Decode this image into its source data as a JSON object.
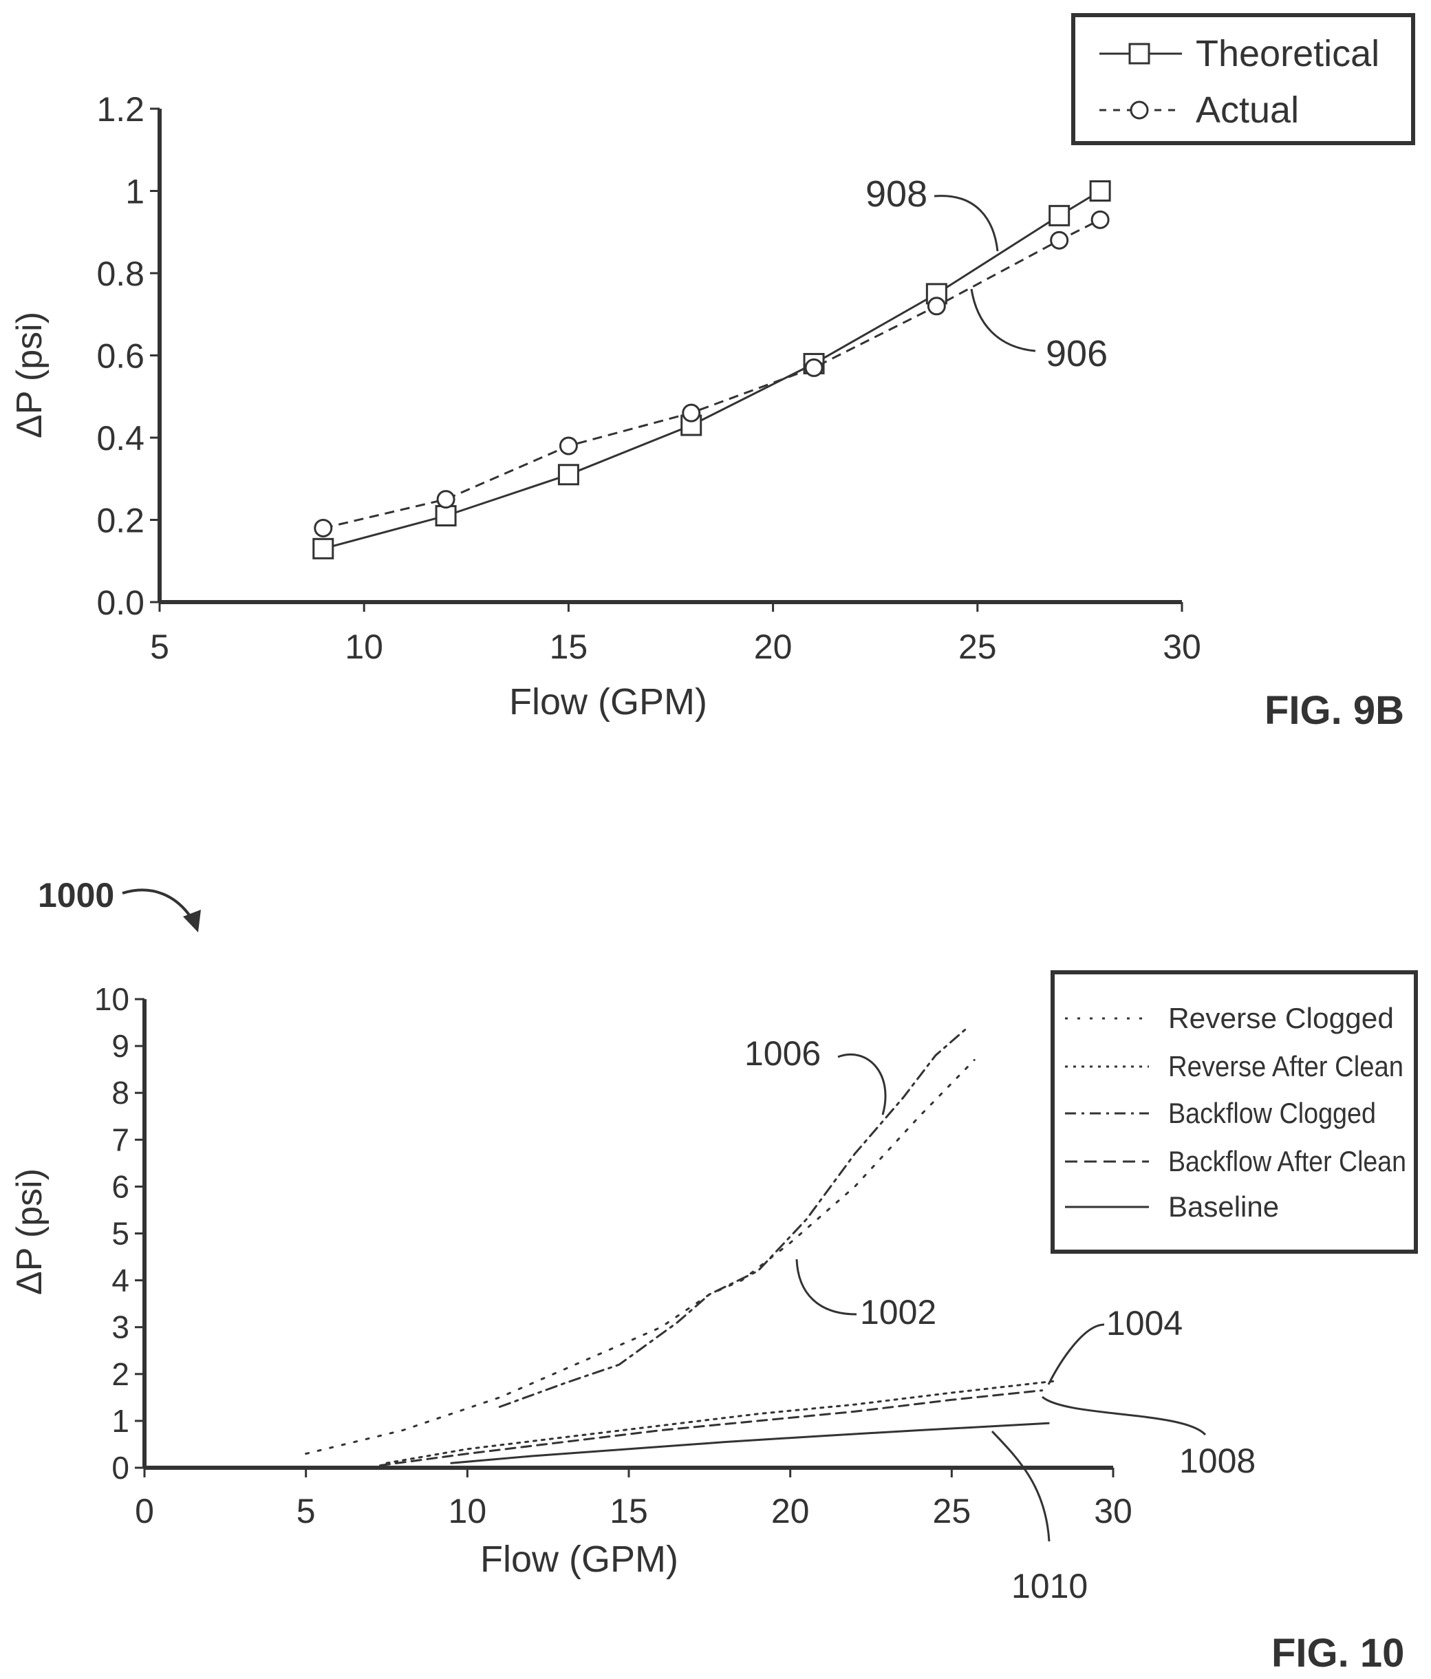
{
  "chart_data": [
    {
      "type": "line",
      "figure_label": "FIG. 9B",
      "xlabel": "Flow (GPM)",
      "ylabel": "ΔP (psi)",
      "xlim": [
        5,
        30
      ],
      "ylim": [
        0,
        1.2
      ],
      "x_ticks": [
        5,
        10,
        15,
        20,
        25,
        30
      ],
      "y_ticks": [
        "0.0",
        "0.2",
        "0.4",
        "0.6",
        "0.8",
        "1",
        "1.2"
      ],
      "legend_position": "top-right",
      "series": [
        {
          "name": "Theoretical",
          "marker": "square",
          "style": "solid",
          "callout": "908",
          "x": [
            9,
            12,
            15,
            18,
            21,
            24,
            27,
            28
          ],
          "y": [
            0.13,
            0.21,
            0.31,
            0.43,
            0.58,
            0.75,
            0.94,
            1.0
          ]
        },
        {
          "name": "Actual",
          "marker": "circle",
          "style": "dashed",
          "callout": "906",
          "x": [
            9,
            12,
            15,
            18,
            21,
            24,
            27,
            28
          ],
          "y": [
            0.18,
            0.25,
            0.38,
            0.46,
            0.57,
            0.72,
            0.88,
            0.93
          ]
        }
      ]
    },
    {
      "type": "line",
      "figure_label": "FIG. 10",
      "reference_label": "1000",
      "xlabel": "Flow (GPM)",
      "ylabel": "ΔP (psi)",
      "xlim": [
        0,
        30
      ],
      "ylim": [
        0,
        10
      ],
      "x_ticks": [
        0,
        5,
        10,
        15,
        20,
        25,
        30
      ],
      "y_ticks": [
        0,
        1,
        2,
        3,
        4,
        5,
        6,
        7,
        8,
        9,
        10
      ],
      "legend_position": "top-right",
      "series": [
        {
          "name": "Reverse Clogged",
          "style": "dotted",
          "callout": "1002",
          "x": [
            5,
            8,
            11,
            14,
            16,
            17.5,
            18.5,
            20,
            22,
            24,
            25.7
          ],
          "y": [
            0.3,
            0.8,
            1.5,
            2.4,
            3.0,
            3.7,
            4.0,
            4.8,
            6.0,
            7.5,
            8.7
          ]
        },
        {
          "name": "Reverse After Clean",
          "style": "dense-dotted",
          "callout": "1004",
          "x": [
            7.5,
            10,
            13,
            16,
            19,
            22,
            25,
            28.2
          ],
          "y": [
            0.1,
            0.4,
            0.65,
            0.9,
            1.15,
            1.35,
            1.6,
            1.85
          ]
        },
        {
          "name": "Backflow Clogged",
          "style": "dash-dot",
          "callout": "1006",
          "x": [
            11,
            13,
            14.7,
            16.5,
            17.5,
            19,
            20.5,
            22,
            23.5,
            24.5,
            25.5
          ],
          "y": [
            1.3,
            1.8,
            2.2,
            3.1,
            3.7,
            4.2,
            5.3,
            6.7,
            7.9,
            8.8,
            9.4
          ]
        },
        {
          "name": "Backflow After Clean",
          "style": "dashed",
          "callout": "1008",
          "x": [
            7.3,
            10,
            13,
            16,
            19,
            22,
            25,
            27.8
          ],
          "y": [
            0.05,
            0.3,
            0.55,
            0.8,
            1.0,
            1.2,
            1.45,
            1.65
          ]
        },
        {
          "name": "Baseline",
          "style": "solid",
          "callout": "1010",
          "x": [
            9.5,
            12,
            15,
            18,
            21,
            24,
            28
          ],
          "y": [
            0.1,
            0.25,
            0.4,
            0.55,
            0.68,
            0.8,
            0.95
          ]
        }
      ]
    }
  ]
}
